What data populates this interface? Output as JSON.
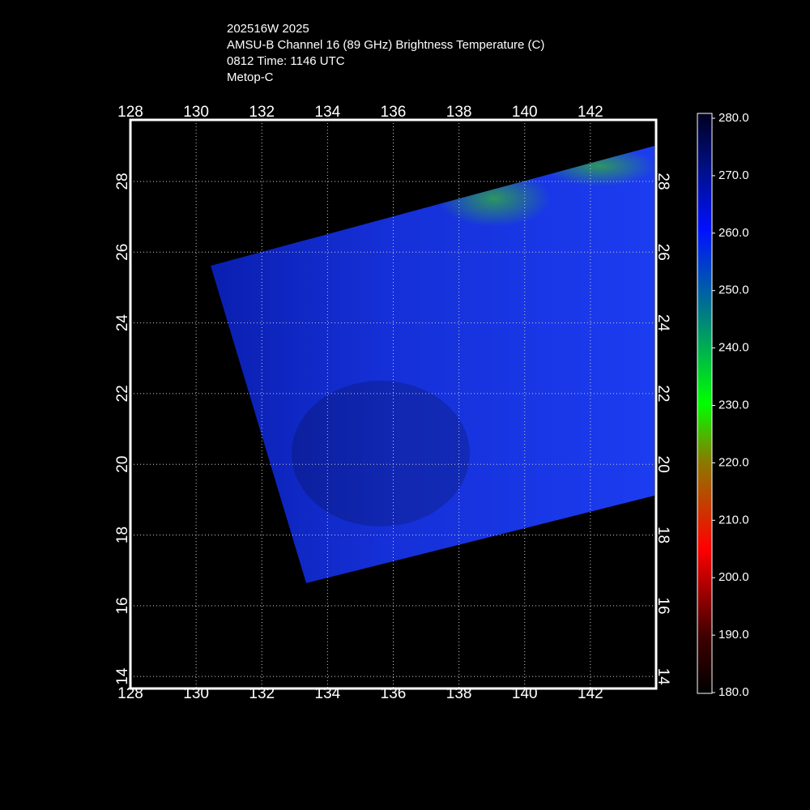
{
  "header": {
    "lines": [
      "202516W 2025",
      "AMSU-B Channel 16 (89 GHz) Brightness Temperature (C)",
      "0812 Time: 1146 UTC",
      "Metop-C"
    ]
  },
  "map": {
    "xlim": [
      128,
      144
    ],
    "ylim": [
      13.66,
      29.74
    ],
    "xticks": [
      128,
      130,
      132,
      134,
      136,
      138,
      140,
      142
    ],
    "yticks": [
      14,
      16,
      18,
      20,
      22,
      24,
      26,
      28
    ],
    "grid": true
  },
  "colorbar": {
    "lim": [
      180,
      280
    ],
    "ticks": [
      {
        "value": 180,
        "label": "180.0"
      },
      {
        "value": 190,
        "label": "190.0"
      },
      {
        "value": 200,
        "label": "200.0"
      },
      {
        "value": 210,
        "label": "210.0"
      },
      {
        "value": 220,
        "label": "220.0"
      },
      {
        "value": 230,
        "label": "230.0"
      },
      {
        "value": 240,
        "label": "240.0"
      },
      {
        "value": 250,
        "label": "250.0"
      },
      {
        "value": 260,
        "label": "260.0"
      },
      {
        "value": 270,
        "label": "270.0"
      },
      {
        "value": 280,
        "label": "280.0"
      }
    ]
  }
}
